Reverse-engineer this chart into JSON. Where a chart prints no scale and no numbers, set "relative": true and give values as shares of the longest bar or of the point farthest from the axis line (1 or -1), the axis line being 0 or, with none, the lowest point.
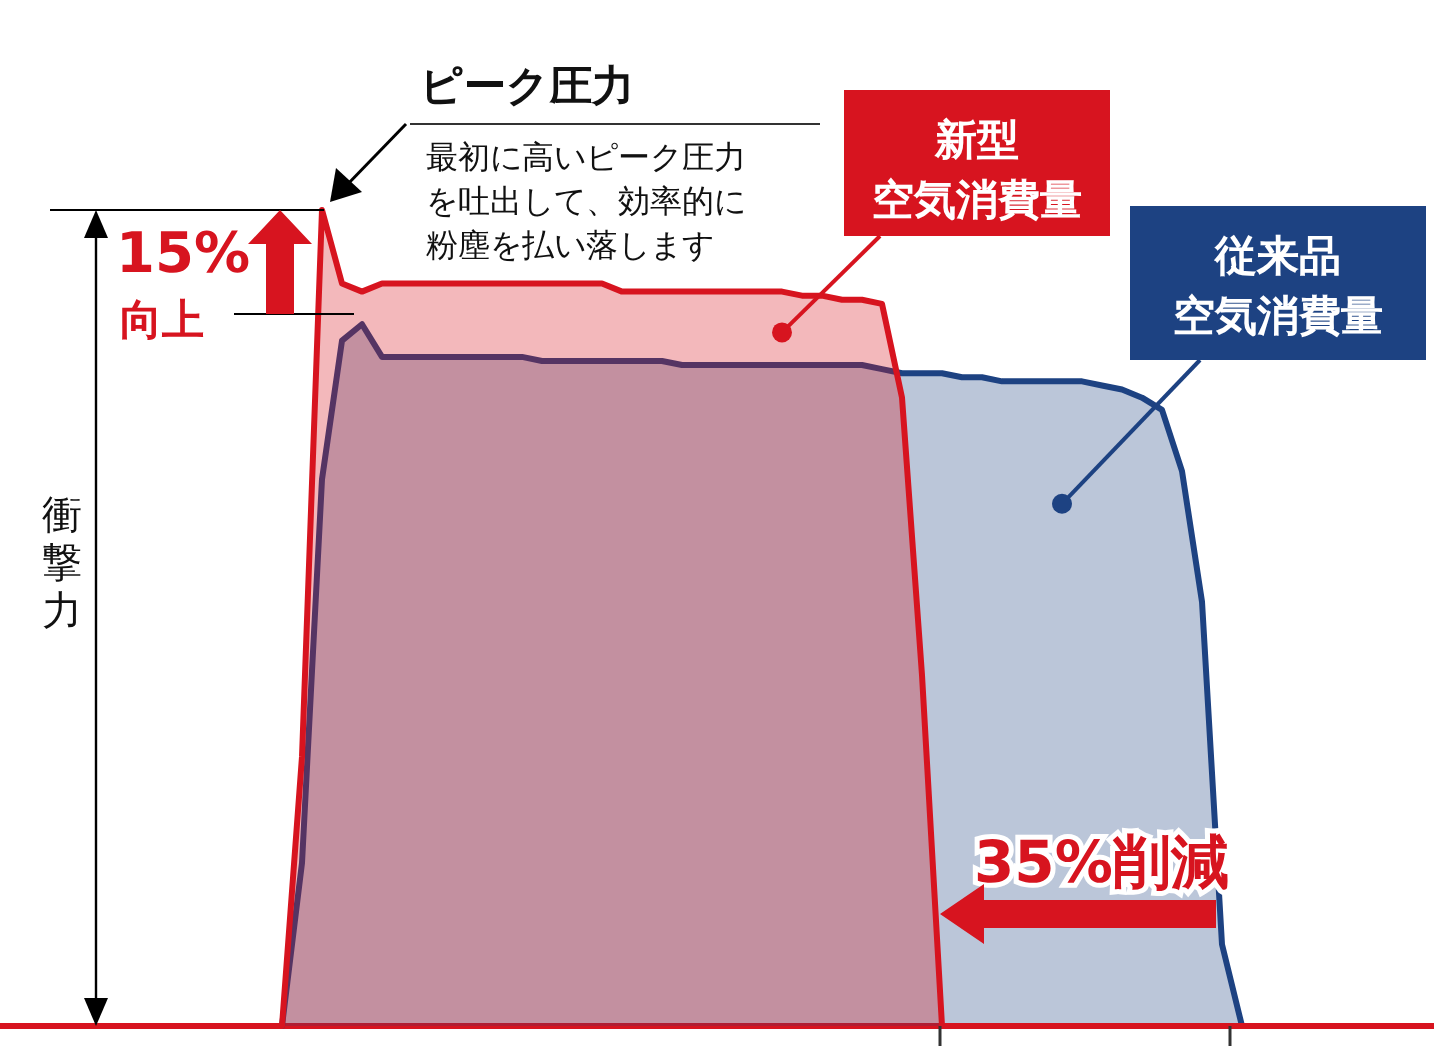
{
  "chart_data": {
    "type": "area",
    "relative": true,
    "ylabel": "衝撃力",
    "categories": [
      null,
      null,
      null,
      null,
      null,
      null,
      null,
      null,
      null,
      null,
      null,
      null,
      null,
      null,
      null,
      null,
      null,
      null,
      null,
      null,
      null,
      null,
      null,
      null,
      null,
      null,
      null,
      null,
      null,
      null,
      null,
      null,
      null,
      null,
      null,
      null,
      null,
      null,
      null,
      null,
      null,
      null,
      null,
      null,
      null,
      null,
      null,
      null,
      null,
      null,
      null,
      null,
      null,
      null,
      null,
      null,
      null,
      null,
      null,
      null,
      null,
      null,
      null,
      null,
      null,
      null,
      null,
      null,
      null,
      null,
      null,
      null
    ],
    "series": [
      {
        "name": "従来品空気消費量",
        "color": "#1d4282",
        "values": [
          0,
          0,
          0,
          0,
          0,
          0,
          0,
          0,
          0,
          0,
          0,
          0,
          0,
          0,
          0,
          0.2,
          0.67,
          0.84,
          0.86,
          0.82,
          0.82,
          0.82,
          0.82,
          0.82,
          0.82,
          0.82,
          0.82,
          0.815,
          0.815,
          0.815,
          0.815,
          0.815,
          0.815,
          0.815,
          0.81,
          0.81,
          0.81,
          0.81,
          0.81,
          0.81,
          0.81,
          0.81,
          0.81,
          0.81,
          0.805,
          0.8,
          0.8,
          0.8,
          0.795,
          0.795,
          0.79,
          0.79,
          0.79,
          0.79,
          0.79,
          0.785,
          0.78,
          0.77,
          0.755,
          0.68,
          0.52,
          0.1,
          0,
          0,
          0,
          0,
          0,
          0,
          0,
          0,
          0,
          0
        ]
      },
      {
        "name": "新型空気消費量",
        "color": "#d7141f",
        "values": [
          0,
          0,
          0,
          0,
          0,
          0,
          0,
          0,
          0,
          0,
          0,
          0,
          0,
          0,
          0,
          0.33,
          1,
          0.91,
          0.9,
          0.91,
          0.91,
          0.91,
          0.91,
          0.91,
          0.91,
          0.91,
          0.91,
          0.91,
          0.91,
          0.91,
          0.91,
          0.9,
          0.9,
          0.9,
          0.9,
          0.9,
          0.9,
          0.9,
          0.9,
          0.9,
          0.895,
          0.895,
          0.89,
          0.89,
          0.885,
          0.77,
          0.43,
          0,
          0,
          0,
          0,
          0,
          0,
          0,
          0,
          0,
          0,
          0,
          0,
          0,
          0,
          0,
          0,
          0,
          0,
          0,
          0,
          0,
          0,
          0,
          0,
          0
        ]
      }
    ],
    "annotations": [
      "ピーク圧力",
      "最初に高いピーク圧力を吐出して、効率的に粉塵を払い落します",
      "15%\n向上",
      "35%削減"
    ]
  }
}
